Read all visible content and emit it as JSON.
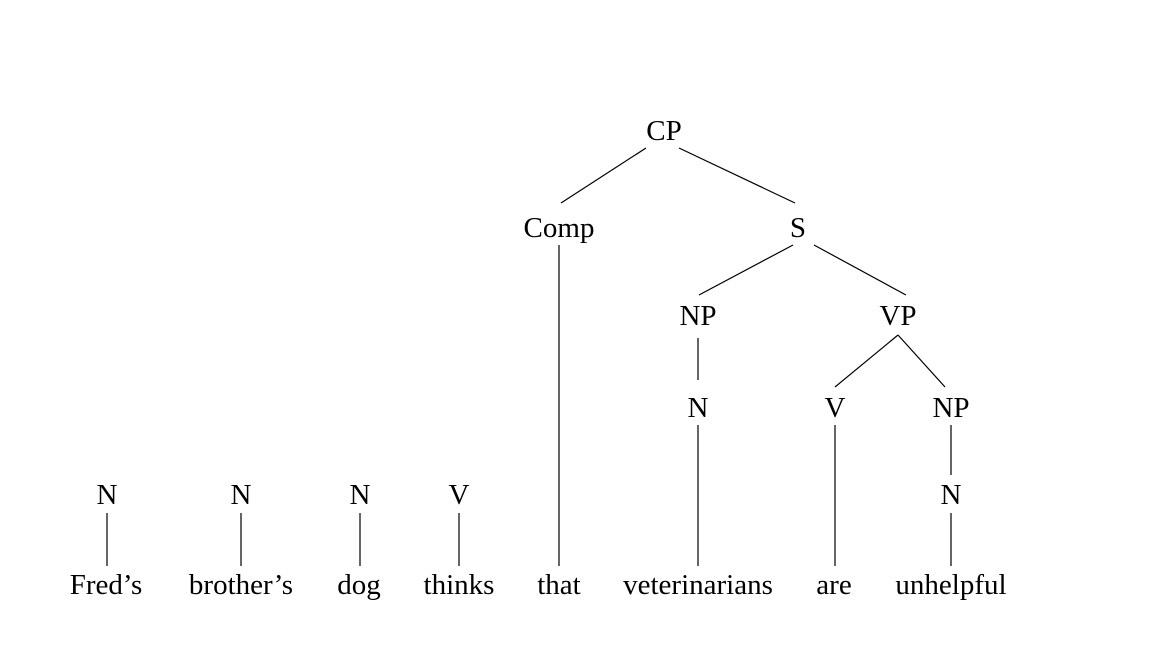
{
  "nodes": {
    "cp": "CP",
    "comp": "Comp",
    "s": "S",
    "np_subject": "NP",
    "vp": "VP",
    "n_subject": "N",
    "v_are": "V",
    "np_object": "NP",
    "n_object": "N",
    "n_freds": "N",
    "n_brothers": "N",
    "n_dog": "N",
    "v_thinks": "V"
  },
  "words": {
    "freds": "Fred’s",
    "brothers": "brother’s",
    "dog": "dog",
    "thinks": "thinks",
    "that": "that",
    "veterinarians": "veterinarians",
    "are": "are",
    "unhelpful": "unhelpful"
  },
  "colors": {
    "text": "#000000",
    "lines": "#000000",
    "background": "#ffffff"
  }
}
